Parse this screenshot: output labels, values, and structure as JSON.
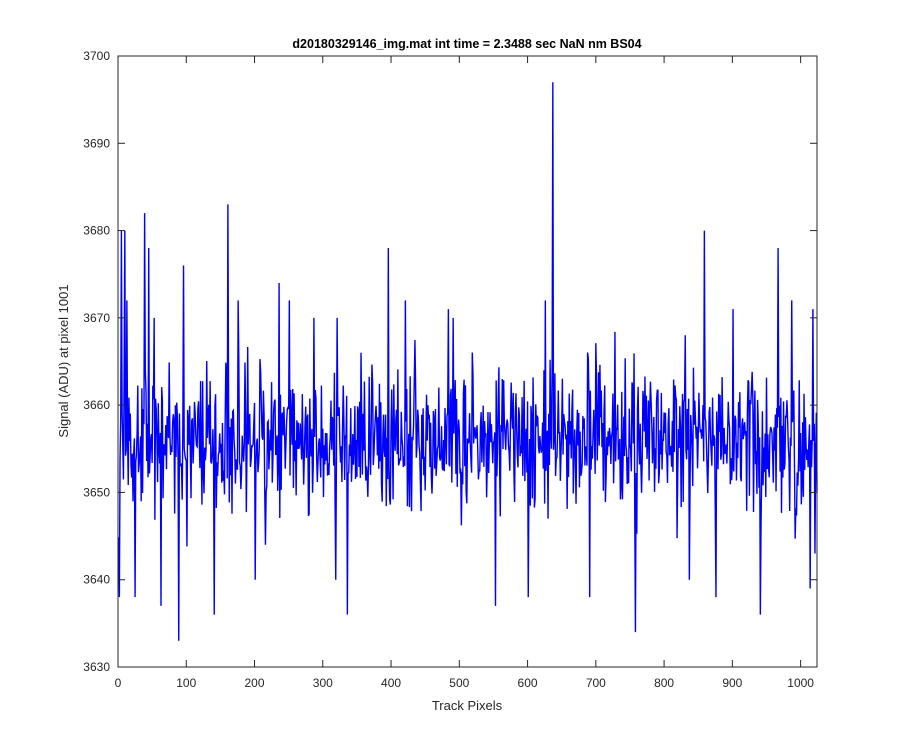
{
  "chart_data": {
    "type": "line",
    "title": "d20180329146_img.mat int time = 2.3488 sec  NaN nm BS04",
    "xlabel": "Track Pixels",
    "ylabel": "Signal (ADU) at pixel 1001",
    "xlim": [
      0,
      1024
    ],
    "ylim": [
      3630,
      3700
    ],
    "xticks": [
      0,
      100,
      200,
      300,
      400,
      500,
      600,
      700,
      800,
      900,
      1000
    ],
    "yticks": [
      3630,
      3640,
      3650,
      3660,
      3670,
      3680,
      3690,
      3700
    ],
    "grid": false,
    "legend": "none",
    "series": [
      {
        "color": "#0000ff",
        "n_points": 1024,
        "mean": 3656,
        "noise_range": [
          3646,
          3666
        ],
        "outliers": [
          [
            1,
            3638
          ],
          [
            4,
            3680
          ],
          [
            9,
            3680
          ],
          [
            12,
            3672
          ],
          [
            24,
            3638
          ],
          [
            38,
            3682
          ],
          [
            44,
            3678
          ],
          [
            52,
            3670
          ],
          [
            62,
            3637
          ],
          [
            88,
            3633
          ],
          [
            95,
            3676
          ],
          [
            140,
            3636
          ],
          [
            160,
            3683
          ],
          [
            175,
            3672
          ],
          [
            200,
            3640
          ],
          [
            215,
            3644
          ],
          [
            235,
            3674
          ],
          [
            250,
            3672
          ],
          [
            286,
            3670
          ],
          [
            318,
            3640
          ],
          [
            320,
            3670
          ],
          [
            335,
            3636
          ],
          [
            355,
            3666
          ],
          [
            395,
            3678
          ],
          [
            420,
            3672
          ],
          [
            483,
            3671
          ],
          [
            490,
            3670
          ],
          [
            552,
            3637
          ],
          [
            600,
            3638
          ],
          [
            625,
            3672
          ],
          [
            636,
            3697
          ],
          [
            690,
            3638
          ],
          [
            757,
            3634
          ],
          [
            830,
            3668
          ],
          [
            836,
            3640
          ],
          [
            858,
            3680
          ],
          [
            875,
            3638
          ],
          [
            900,
            3671
          ],
          [
            940,
            3636
          ],
          [
            966,
            3678
          ],
          [
            986,
            3672
          ],
          [
            1013,
            3639
          ],
          [
            1017,
            3671
          ],
          [
            1020,
            3643
          ]
        ]
      }
    ]
  }
}
